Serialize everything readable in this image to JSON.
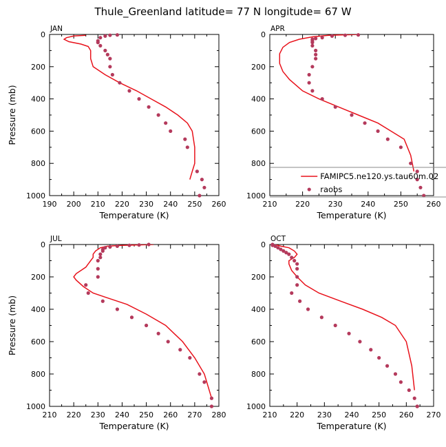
{
  "figure_title": "Thule_Greenland  latitude= 77 N longitude= 67 W",
  "colors": {
    "model": "#e8111a",
    "obs": "#b43a5c",
    "axis": "#000000",
    "legend_box": "#888888"
  },
  "chart_data": [
    {
      "type": "line",
      "panel": "JAN",
      "xlabel": "Temperature (K)",
      "ylabel": "Pressure (mb)",
      "xlim": [
        190,
        260
      ],
      "xticks": [
        "190",
        "200",
        "210",
        "220",
        "230",
        "240",
        "250",
        "260"
      ],
      "ylim": [
        1000,
        0
      ],
      "yticks": [
        "0",
        "200",
        "400",
        "600",
        "800",
        "1000"
      ],
      "series": [
        {
          "kind": "line",
          "x": [
            205,
            200,
            197,
            196,
            198,
            203,
            206,
            207,
            207,
            208,
            213,
            219,
            226,
            232,
            238,
            243,
            247,
            249,
            250,
            250,
            249,
            248
          ],
          "y": [
            5,
            10,
            20,
            30,
            45,
            60,
            75,
            100,
            150,
            200,
            250,
            300,
            350,
            400,
            450,
            500,
            550,
            600,
            700,
            800,
            850,
            900
          ]
        },
        {
          "kind": "points",
          "x": [
            218,
            215,
            213,
            211,
            210,
            210,
            211,
            213,
            214,
            215,
            215,
            216,
            219,
            223,
            227,
            231,
            235,
            238,
            240,
            246,
            247,
            251,
            253,
            254,
            252
          ],
          "y": [
            3,
            5,
            10,
            20,
            40,
            50,
            70,
            100,
            125,
            150,
            200,
            250,
            300,
            350,
            400,
            450,
            500,
            550,
            600,
            650,
            700,
            850,
            900,
            950,
            1000
          ]
        }
      ]
    },
    {
      "type": "line",
      "panel": "APR",
      "xlabel": "Temperature (K)",
      "ylabel": "",
      "xlim": [
        210,
        260
      ],
      "xticks": [
        "210",
        "220",
        "230",
        "240",
        "250",
        "260"
      ],
      "ylim": [
        1000,
        0
      ],
      "yticks": [
        "0",
        "200",
        "400",
        "600",
        "800",
        "1000"
      ],
      "legend": {
        "position": "bottom-right",
        "entries": [
          "FAMIPC5.ne120.ys.tau60m.02",
          "raobs"
        ]
      },
      "series": [
        {
          "name": "FAMIPC5.ne120.ys.tau60m.02",
          "kind": "line",
          "x": [
            237,
            228,
            223,
            219,
            216,
            214,
            213,
            213,
            214,
            216,
            220,
            225,
            231,
            237,
            243,
            247,
            251,
            253,
            254
          ],
          "y": [
            0,
            5,
            15,
            30,
            50,
            80,
            120,
            180,
            230,
            280,
            350,
            400,
            450,
            500,
            550,
            600,
            650,
            750,
            850
          ]
        },
        {
          "name": "raobs",
          "kind": "points",
          "x": [
            237,
            233,
            229,
            226,
            224,
            223,
            223,
            223,
            223,
            224,
            224,
            224,
            223,
            222,
            222,
            223,
            226,
            230,
            235,
            239,
            243,
            246,
            250,
            253,
            255,
            255,
            256,
            257
          ],
          "y": [
            3,
            5,
            10,
            20,
            25,
            30,
            40,
            50,
            70,
            100,
            125,
            150,
            200,
            250,
            300,
            350,
            400,
            450,
            500,
            550,
            600,
            650,
            700,
            800,
            850,
            900,
            950,
            1000
          ]
        }
      ]
    },
    {
      "type": "line",
      "panel": "JUL",
      "xlabel": "Temperature (K)",
      "ylabel": "Pressure (mb)",
      "xlim": [
        210,
        280
      ],
      "xticks": [
        "210",
        "220",
        "230",
        "240",
        "250",
        "260",
        "270",
        "280"
      ],
      "ylim": [
        1000,
        0
      ],
      "yticks": [
        "0",
        "200",
        "400",
        "600",
        "800",
        "1000"
      ],
      "series": [
        {
          "kind": "line",
          "x": [
            253,
            240,
            234,
            231,
            229,
            228,
            228,
            227,
            226,
            225,
            223,
            221,
            220,
            221,
            224,
            228,
            234,
            242,
            250,
            258,
            265,
            270,
            274,
            277
          ],
          "y": [
            0,
            5,
            10,
            20,
            40,
            60,
            80,
            100,
            120,
            140,
            160,
            180,
            200,
            220,
            260,
            300,
            330,
            370,
            430,
            500,
            600,
            700,
            800,
            950
          ]
        },
        {
          "kind": "points",
          "x": [
            251,
            247,
            243,
            238,
            235,
            233,
            232,
            232,
            231,
            231,
            230,
            230,
            230,
            225,
            226,
            232,
            238,
            244,
            250,
            255,
            259,
            264,
            268,
            272,
            274,
            277,
            277
          ],
          "y": [
            0,
            3,
            5,
            10,
            15,
            20,
            30,
            40,
            60,
            80,
            100,
            150,
            200,
            250,
            300,
            350,
            400,
            450,
            500,
            550,
            600,
            650,
            700,
            800,
            850,
            950,
            1000
          ]
        }
      ]
    },
    {
      "type": "line",
      "panel": "OCT",
      "xlabel": "Temperature (K)",
      "ylabel": "",
      "xlim": [
        210,
        270
      ],
      "xticks": [
        "210",
        "220",
        "230",
        "240",
        "250",
        "260",
        "270"
      ],
      "ylim": [
        1000,
        0
      ],
      "yticks": [
        "0",
        "200",
        "400",
        "600",
        "800",
        "1000"
      ],
      "series": [
        {
          "kind": "line",
          "x": [
            212,
            214,
            217,
            219,
            220,
            219,
            217,
            217,
            218,
            220,
            223,
            228,
            236,
            244,
            251,
            256,
            260,
            262,
            263
          ],
          "y": [
            0,
            10,
            20,
            40,
            60,
            80,
            100,
            120,
            160,
            200,
            250,
            300,
            350,
            400,
            450,
            500,
            600,
            750,
            900
          ]
        },
        {
          "kind": "points",
          "x": [
            211,
            211,
            212,
            213,
            214,
            215,
            216,
            217,
            218,
            219,
            220,
            220,
            220,
            220,
            218,
            221,
            224,
            229,
            234,
            239,
            243,
            247,
            250,
            253,
            256,
            258,
            261,
            263,
            264,
            264
          ],
          "y": [
            0,
            5,
            10,
            20,
            30,
            40,
            50,
            60,
            80,
            100,
            120,
            150,
            200,
            250,
            300,
            350,
            400,
            450,
            500,
            550,
            600,
            650,
            700,
            750,
            800,
            850,
            900,
            950,
            1000,
            1000
          ]
        }
      ]
    }
  ]
}
